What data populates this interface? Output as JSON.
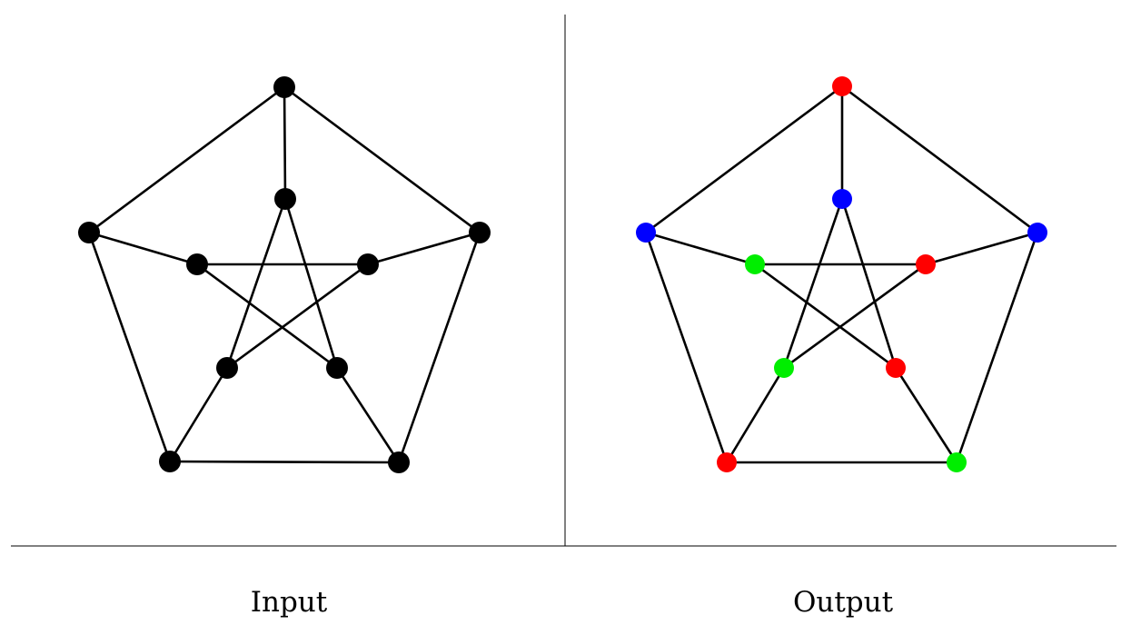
{
  "panels": [
    {
      "id": "input",
      "caption": "Input",
      "vertex_colors": {
        "outer_top": "#000000",
        "outer_right": "#000000",
        "outer_bottom_right": "#000000",
        "outer_bottom_left": "#000000",
        "outer_left": "#000000",
        "inner_top": "#000000",
        "inner_right": "#000000",
        "inner_bottom_right": "#000000",
        "inner_bottom_left": "#000000",
        "inner_left": "#000000"
      }
    },
    {
      "id": "output",
      "caption": "Output",
      "vertex_colors": {
        "outer_top": "#ff0000",
        "outer_right": "#0000ff",
        "outer_bottom_right": "#00ee00",
        "outer_bottom_left": "#ff0000",
        "outer_left": "#0000ff",
        "inner_top": "#0000ff",
        "inner_right": "#ff0000",
        "inner_bottom_right": "#ff0000",
        "inner_bottom_left": "#00ee00",
        "inner_left": "#00ee00"
      }
    }
  ],
  "graph": {
    "vertices": [
      "outer_top",
      "outer_right",
      "outer_bottom_right",
      "outer_bottom_left",
      "outer_left",
      "inner_top",
      "inner_right",
      "inner_bottom_right",
      "inner_bottom_left",
      "inner_left"
    ],
    "edges": [
      [
        "outer_top",
        "outer_right"
      ],
      [
        "outer_right",
        "outer_bottom_right"
      ],
      [
        "outer_bottom_right",
        "outer_bottom_left"
      ],
      [
        "outer_bottom_left",
        "outer_left"
      ],
      [
        "outer_left",
        "outer_top"
      ],
      [
        "outer_top",
        "inner_top"
      ],
      [
        "outer_right",
        "inner_right"
      ],
      [
        "outer_bottom_right",
        "inner_bottom_right"
      ],
      [
        "outer_bottom_left",
        "inner_bottom_left"
      ],
      [
        "outer_left",
        "inner_left"
      ],
      [
        "inner_top",
        "inner_bottom_right"
      ],
      [
        "inner_top",
        "inner_bottom_left"
      ],
      [
        "inner_left",
        "inner_right"
      ],
      [
        "inner_left",
        "inner_bottom_right"
      ],
      [
        "inner_right",
        "inner_bottom_left"
      ]
    ]
  }
}
